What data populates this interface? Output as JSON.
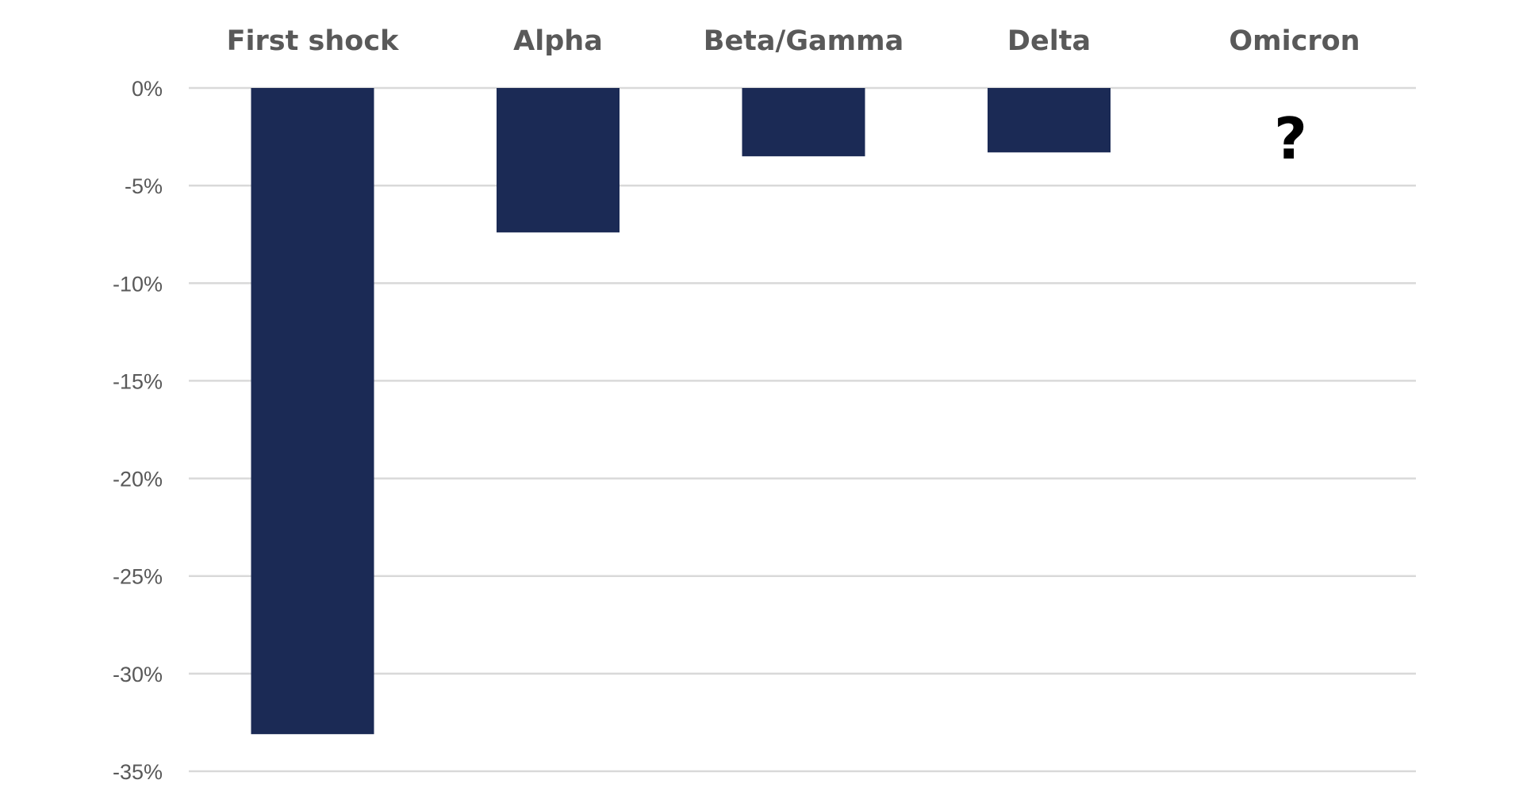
{
  "chart_data": {
    "type": "bar",
    "categories": [
      "First shock",
      "Alpha",
      "Beta/Gamma",
      "Delta",
      "Omicron"
    ],
    "values": [
      -33.1,
      -7.4,
      -3.5,
      -3.3,
      null
    ],
    "ylim": [
      -35,
      0
    ],
    "yticks": [
      0,
      -5,
      -10,
      -15,
      -20,
      -25,
      -30,
      -35
    ],
    "ytick_labels": [
      "0%",
      "-5%",
      "-10%",
      "-15%",
      "-20%",
      "-25%",
      "-30%",
      "-35%"
    ],
    "category_axis_position": "top",
    "grid": true,
    "bar_color": "#1b2a55",
    "grid_color": "#d9d9d9",
    "annotations": [
      {
        "category": "Omicron",
        "text": "?"
      }
    ]
  }
}
